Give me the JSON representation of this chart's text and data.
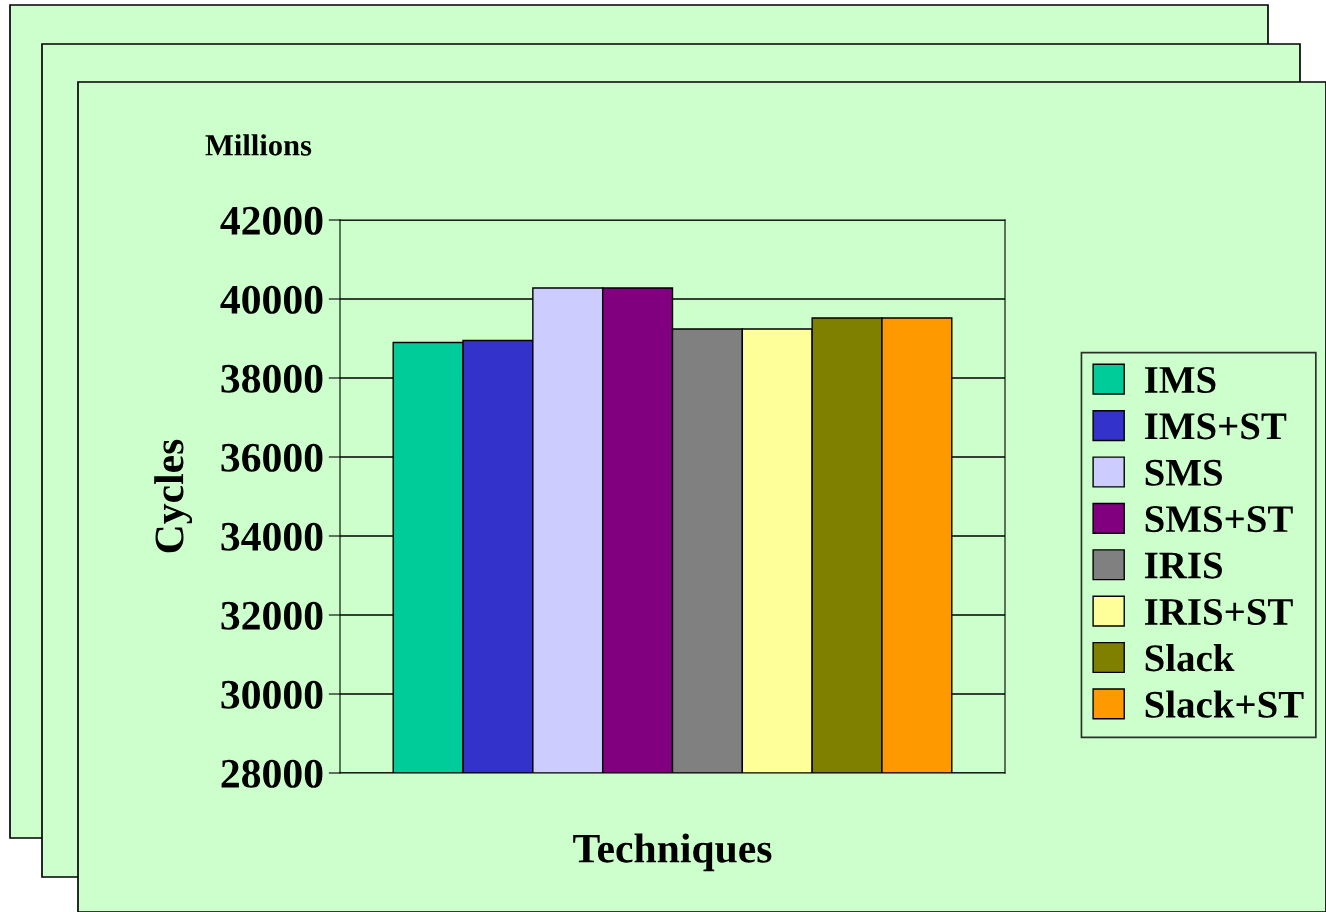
{
  "chart_data": {
    "type": "bar",
    "xlabel": "Techniques",
    "ylabel": "Cycles",
    "annotations": [
      "Millions"
    ],
    "categories": [
      null
    ],
    "series": [
      {
        "name": "IMS",
        "color": "#00cc99",
        "values": [
          38900
        ]
      },
      {
        "name": "IMS+ST",
        "color": "#3333cc",
        "values": [
          38950
        ]
      },
      {
        "name": "SMS",
        "color": "#ccccff",
        "values": [
          40280
        ]
      },
      {
        "name": "SMS+ST",
        "color": "#800080",
        "values": [
          40280
        ]
      },
      {
        "name": "IRIS",
        "color": "#808080",
        "values": [
          39240
        ]
      },
      {
        "name": "IRIS+ST",
        "color": "#ffff99",
        "values": [
          39240
        ]
      },
      {
        "name": "Slack",
        "color": "#808000",
        "values": [
          39520
        ]
      },
      {
        "name": "Slack+ST",
        "color": "#ff9900",
        "values": [
          39520
        ]
      }
    ],
    "ylim": [
      28000,
      42000
    ],
    "yticks": [
      28000,
      30000,
      32000,
      34000,
      36000,
      38000,
      40000,
      42000
    ],
    "grid": "y",
    "legend": "right"
  }
}
